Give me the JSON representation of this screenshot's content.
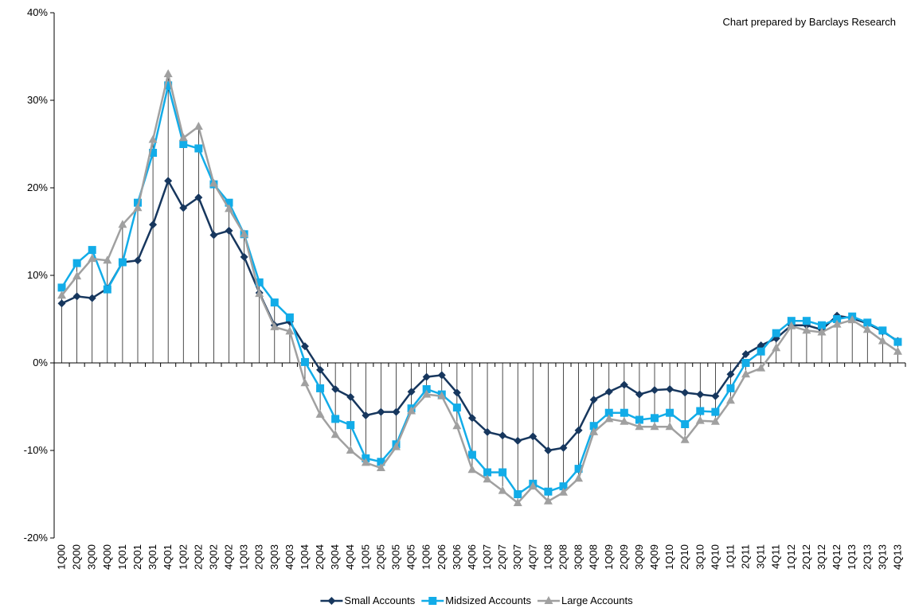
{
  "chart_data": {
    "type": "line",
    "annotation": "Chart prepared by Barclays Research",
    "categories": [
      "1Q00",
      "2Q00",
      "3Q00",
      "4Q00",
      "1Q01",
      "2Q01",
      "3Q01",
      "4Q01",
      "1Q02",
      "2Q02",
      "3Q02",
      "4Q02",
      "1Q03",
      "2Q03",
      "3Q03",
      "4Q03",
      "1Q04",
      "2Q04",
      "3Q04",
      "4Q04",
      "1Q05",
      "2Q05",
      "3Q05",
      "4Q05",
      "1Q06",
      "2Q06",
      "3Q06",
      "4Q06",
      "1Q07",
      "2Q07",
      "3Q07",
      "4Q07",
      "1Q08",
      "2Q08",
      "3Q08",
      "4Q08",
      "1Q09",
      "2Q09",
      "3Q09",
      "4Q09",
      "1Q10",
      "2Q10",
      "3Q10",
      "4Q10",
      "1Q11",
      "2Q11",
      "3Q11",
      "4Q11",
      "1Q12",
      "2Q12",
      "3Q12",
      "4Q12",
      "1Q13",
      "2Q13",
      "3Q13",
      "4Q13"
    ],
    "series": [
      {
        "name": "Small Accounts",
        "color": "#17375e",
        "marker": "diamond",
        "values": [
          6.8,
          7.6,
          7.4,
          8.5,
          11.5,
          11.7,
          15.8,
          20.8,
          17.7,
          18.9,
          14.6,
          15.1,
          12.1,
          8.0,
          4.3,
          4.7,
          1.9,
          -0.8,
          -3.0,
          -3.9,
          -6.0,
          -5.6,
          -5.6,
          -3.3,
          -1.6,
          -1.4,
          -3.4,
          -6.3,
          -7.9,
          -8.3,
          -8.9,
          -8.4,
          -10.0,
          -9.7,
          -7.7,
          -4.2,
          -3.3,
          -2.5,
          -3.6,
          -3.1,
          -3.0,
          -3.4,
          -3.6,
          -3.8,
          -1.3,
          1.0,
          2.0,
          2.8,
          4.3,
          4.3,
          3.8,
          5.4,
          5.1,
          4.5,
          3.6,
          2.5
        ]
      },
      {
        "name": "Midsized Accounts",
        "color": "#12ace8",
        "marker": "square",
        "values": [
          8.6,
          11.4,
          12.9,
          8.4,
          11.5,
          18.3,
          24.0,
          31.7,
          25.0,
          24.5,
          20.4,
          18.3,
          14.7,
          9.2,
          6.9,
          5.2,
          0.1,
          -2.9,
          -6.4,
          -7.1,
          -10.9,
          -11.3,
          -9.3,
          -5.2,
          -3.0,
          -3.6,
          -5.1,
          -10.5,
          -12.5,
          -12.5,
          -15.0,
          -13.8,
          -14.7,
          -14.1,
          -12.1,
          -7.2,
          -5.7,
          -5.7,
          -6.5,
          -6.3,
          -5.7,
          -7.0,
          -5.5,
          -5.6,
          -2.9,
          0.0,
          1.3,
          3.4,
          4.8,
          4.8,
          4.3,
          5.0,
          5.3,
          4.6,
          3.7,
          2.4
        ]
      },
      {
        "name": "Large Accounts",
        "color": "#a0a0a0",
        "marker": "triangle",
        "values": [
          7.7,
          9.9,
          11.9,
          11.7,
          15.8,
          17.7,
          25.5,
          33.0,
          25.7,
          27.0,
          20.5,
          17.6,
          14.7,
          7.9,
          4.1,
          3.6,
          -2.3,
          -5.9,
          -8.2,
          -10.0,
          -11.4,
          -12.0,
          -9.6,
          -5.5,
          -3.6,
          -3.8,
          -7.2,
          -12.2,
          -13.3,
          -14.6,
          -16.0,
          -14.1,
          -15.8,
          -14.8,
          -13.2,
          -7.9,
          -6.4,
          -6.7,
          -7.3,
          -7.3,
          -7.3,
          -8.8,
          -6.6,
          -6.7,
          -4.3,
          -1.3,
          -0.6,
          1.7,
          4.2,
          3.7,
          3.5,
          4.4,
          4.9,
          3.8,
          2.5,
          1.3
        ]
      }
    ],
    "ylim": [
      -20,
      40
    ],
    "yticks": [
      {
        "value": -20,
        "label": "-20%"
      },
      {
        "value": -10,
        "label": "-10%"
      },
      {
        "value": 0,
        "label": "0%"
      },
      {
        "value": 10,
        "label": "10%"
      },
      {
        "value": 20,
        "label": "20%"
      },
      {
        "value": 30,
        "label": "30%"
      },
      {
        "value": 40,
        "label": "40%"
      }
    ],
    "drop_lines": true,
    "legend": "bottom"
  }
}
